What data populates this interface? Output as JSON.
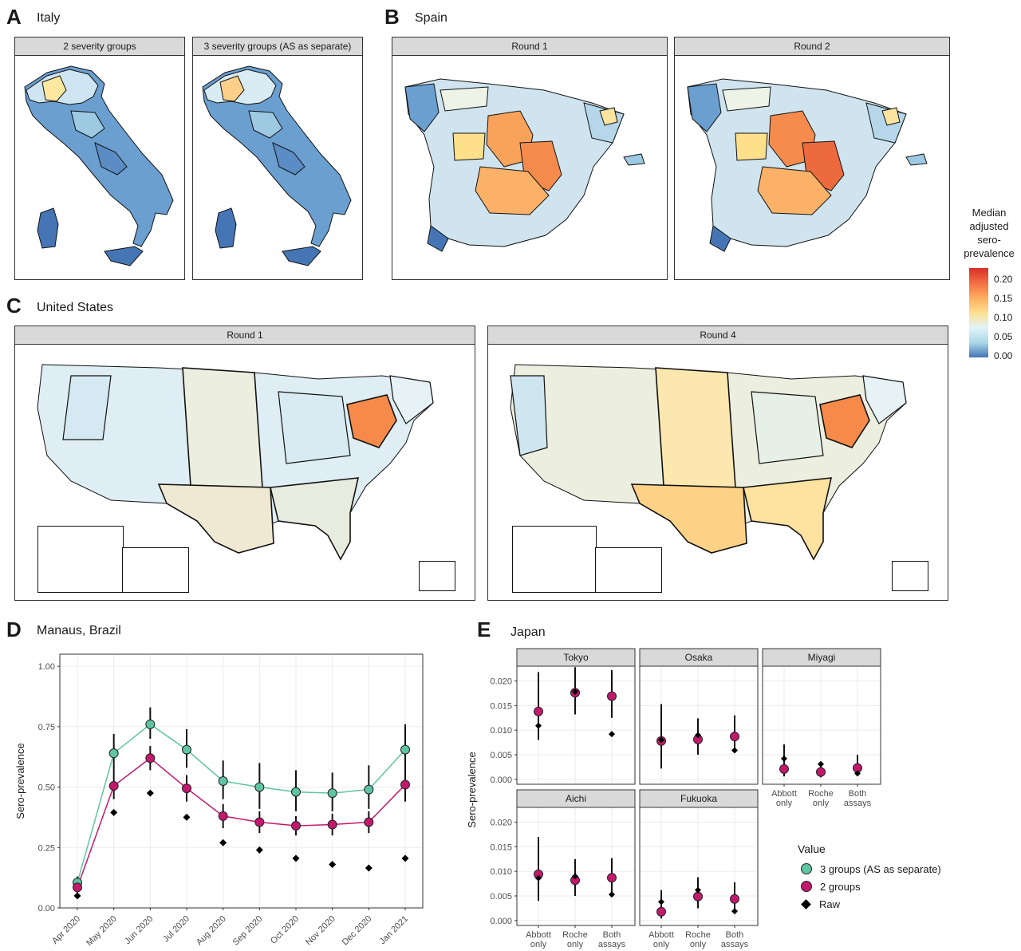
{
  "colors": {
    "scale": [
      "#4575b4",
      "#abd9e9",
      "#ffffbf",
      "#fdae61",
      "#d73027"
    ],
    "three_groups": "#5fc4a3",
    "two_groups": "#c2186e",
    "raw": "#000000"
  },
  "panels": {
    "A": {
      "letter": "A",
      "title": "Italy",
      "facets": [
        "2 severity groups",
        "3 severity groups (AS as separate)"
      ]
    },
    "B": {
      "letter": "B",
      "title": "Spain",
      "facets": [
        "Round 1",
        "Round 2"
      ]
    },
    "C": {
      "letter": "C",
      "title": "United States",
      "facets": [
        "Round 1",
        "Round 4"
      ]
    },
    "D": {
      "letter": "D",
      "title": "Manaus, Brazil"
    },
    "E": {
      "letter": "E",
      "title": "Japan"
    }
  },
  "colorbar": {
    "title_lines": [
      "Median",
      "adjusted",
      "sero-",
      "prevalence"
    ],
    "ticks": [
      "0.20",
      "0.15",
      "0.10",
      "0.05",
      "0.00"
    ],
    "range": [
      0,
      0.23
    ]
  },
  "chart_data": [
    {
      "type": "scatter",
      "title": "Manaus, Brazil",
      "ylabel": "Sero-prevalence",
      "ylim": [
        0,
        1.05
      ],
      "yticks": [
        "0.00",
        "0.25",
        "0.50",
        "0.75",
        "1.00"
      ],
      "categories": [
        "Apr 2020",
        "May 2020",
        "Jun 2020",
        "Jul 2020",
        "Aug 2020",
        "Sep 2020",
        "Oct 2020",
        "Nov 2020",
        "Dec 2020",
        "Jan 2021"
      ],
      "series": [
        {
          "name": "3 groups (AS as separate)",
          "values": [
            0.105,
            0.64,
            0.76,
            0.655,
            0.525,
            0.5,
            0.48,
            0.475,
            0.49,
            0.655
          ],
          "lower": [
            0.08,
            0.56,
            0.7,
            0.58,
            0.45,
            0.41,
            0.4,
            0.4,
            0.41,
            0.57
          ],
          "upper": [
            0.13,
            0.72,
            0.83,
            0.74,
            0.61,
            0.6,
            0.57,
            0.56,
            0.59,
            0.76
          ]
        },
        {
          "name": "2 groups",
          "values": [
            0.085,
            0.505,
            0.62,
            0.495,
            0.38,
            0.355,
            0.34,
            0.345,
            0.355,
            0.51
          ],
          "lower": [
            0.06,
            0.45,
            0.57,
            0.44,
            0.33,
            0.31,
            0.3,
            0.3,
            0.31,
            0.44
          ],
          "upper": [
            0.11,
            0.56,
            0.67,
            0.55,
            0.43,
            0.4,
            0.38,
            0.39,
            0.4,
            0.58
          ]
        },
        {
          "name": "Raw",
          "values": [
            0.05,
            0.395,
            0.475,
            0.375,
            0.27,
            0.24,
            0.205,
            0.18,
            0.165,
            0.205
          ]
        }
      ]
    },
    {
      "type": "scatter",
      "title": "Japan",
      "ylabel": "Sero-prevalence",
      "ylim": [
        -0.001,
        0.023
      ],
      "yticks": [
        "0.000",
        "0.005",
        "0.010",
        "0.015",
        "0.020"
      ],
      "categories": [
        [
          "Abbott",
          "only"
        ],
        [
          "Roche",
          "only"
        ],
        [
          "Both",
          "assays"
        ]
      ],
      "facets": [
        {
          "name": "Tokyo",
          "two_groups": [
            0.0138,
            0.0176,
            0.0169
          ],
          "lower": [
            0.008,
            0.0132,
            0.0125
          ],
          "upper": [
            0.0218,
            0.0228,
            0.0222
          ],
          "raw": [
            0.0109,
            0.0178,
            0.0092
          ]
        },
        {
          "name": "Osaka",
          "two_groups": [
            0.0078,
            0.0081,
            0.0087
          ],
          "lower": [
            0.0022,
            0.005,
            0.0055
          ],
          "upper": [
            0.0153,
            0.0124,
            0.013
          ],
          "raw": [
            0.008,
            0.009,
            0.0059
          ]
        },
        {
          "name": "Miyagi",
          "two_groups": [
            0.0021,
            0.0015,
            0.0023
          ],
          "lower": [
            0.0006,
            0.0004,
            0.0008
          ],
          "upper": [
            0.0071,
            0.0036,
            0.005
          ],
          "raw": [
            0.0042,
            0.0031,
            0.0012
          ]
        },
        {
          "name": "Aichi",
          "two_groups": [
            0.0094,
            0.0082,
            0.0087
          ],
          "lower": [
            0.004,
            0.005,
            0.0056
          ],
          "upper": [
            0.017,
            0.0125,
            0.0127
          ],
          "raw": [
            0.0086,
            0.009,
            0.0053
          ]
        },
        {
          "name": "Fukuoka",
          "two_groups": [
            0.0018,
            0.0049,
            0.0044
          ],
          "lower": [
            0.0004,
            0.0025,
            0.0018
          ],
          "upper": [
            0.0062,
            0.0088,
            0.0078
          ],
          "raw": [
            0.0038,
            0.0062,
            0.0019
          ]
        }
      ]
    }
  ],
  "legend": {
    "title": "Value",
    "items": [
      "3 groups (AS as separate)",
      "2 groups",
      "Raw"
    ]
  }
}
